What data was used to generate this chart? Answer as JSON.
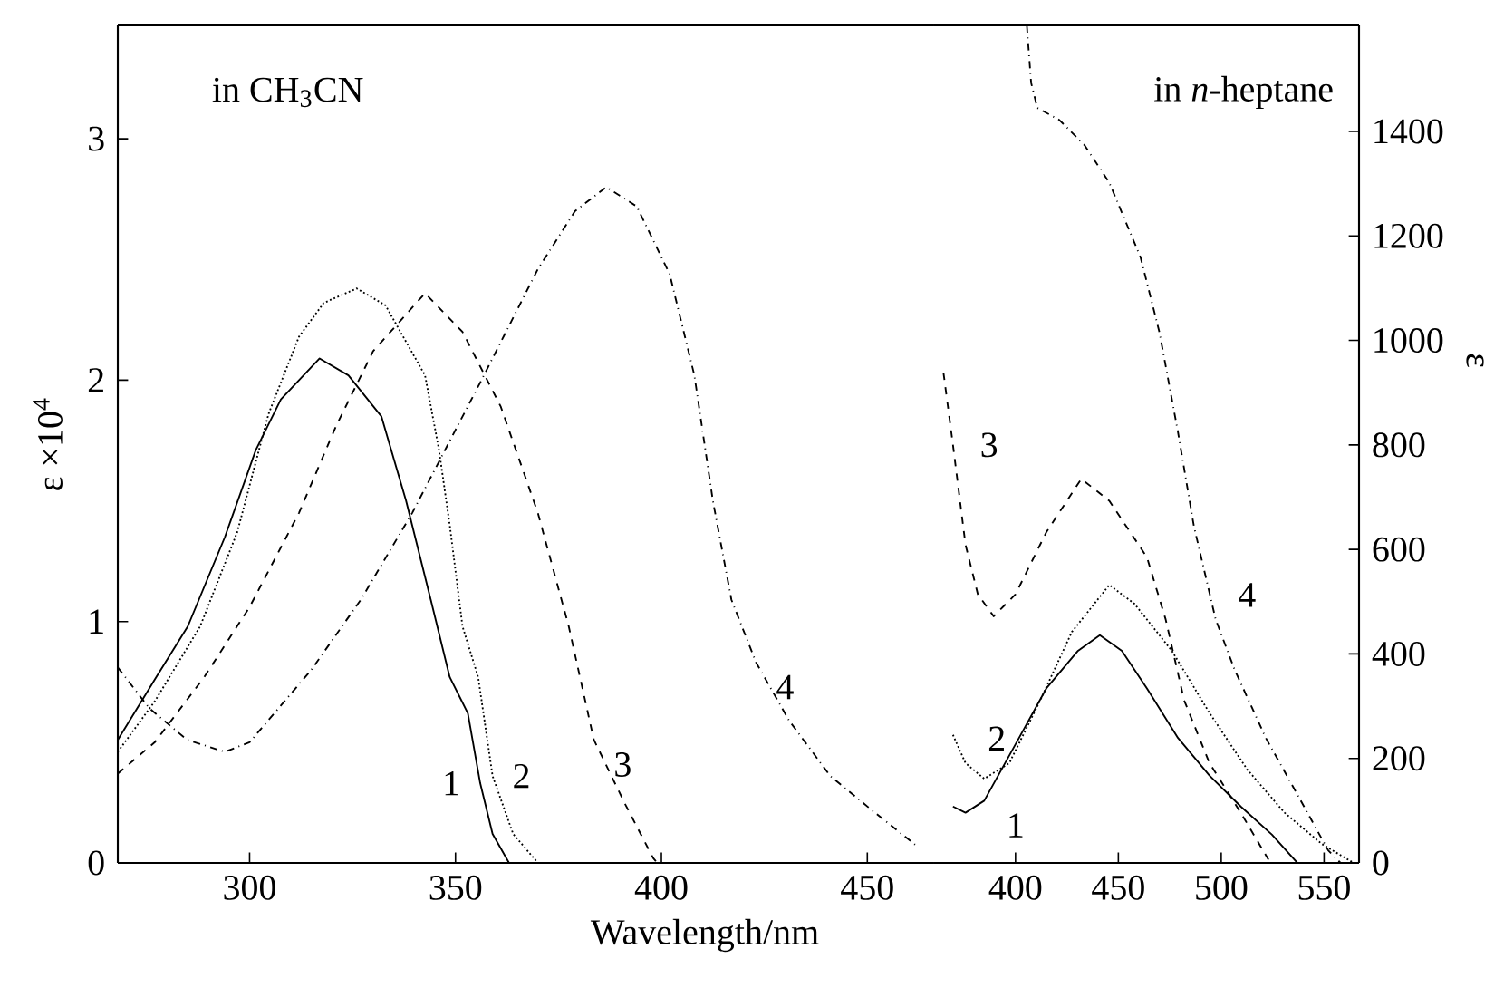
{
  "chart_data": [
    {
      "type": "line",
      "xlabel": "Wavelength/nm",
      "ylabel": "ε ×10$^{4}$",
      "annotations": [
        "in CH$_{3}$CN"
      ],
      "xlim": [
        268,
        466
      ],
      "ylim": [
        0,
        3.47
      ],
      "xticks": [
        300,
        350,
        400,
        450
      ],
      "yticks": [
        0,
        1,
        2,
        3
      ],
      "series": [
        {
          "name": "1",
          "color": "#000000",
          "line_style": "solid",
          "x": [
            268,
            277,
            285,
            294,
            301.5,
            307.6,
            317,
            324,
            332,
            338,
            344,
            348.6,
            353,
            356,
            359,
            363
          ],
          "values": [
            0.51,
            0.76,
            0.98,
            1.35,
            1.71,
            1.92,
            2.09,
            2.02,
            1.85,
            1.5,
            1.09,
            0.77,
            0.62,
            0.33,
            0.12,
            0
          ]
        },
        {
          "name": "2",
          "color": "#000000",
          "line_style": "dotted",
          "x": [
            268,
            277,
            288,
            297,
            304.6,
            312,
            318,
            326,
            333,
            342.6,
            346,
            348.6,
            351.7,
            355.5,
            359,
            364,
            370
          ],
          "values": [
            0.46,
            0.67,
            0.98,
            1.37,
            1.86,
            2.18,
            2.32,
            2.38,
            2.31,
            2.02,
            1.71,
            1.4,
            0.98,
            0.77,
            0.36,
            0.12,
            0
          ]
        },
        {
          "name": "3",
          "color": "#000000",
          "line_style": "dashed",
          "x": [
            268,
            277,
            289,
            300,
            312,
            321,
            330,
            342.6,
            351.7,
            361,
            370,
            377.5,
            383.6,
            391,
            398,
            399
          ],
          "values": [
            0.37,
            0.5,
            0.77,
            1.06,
            1.45,
            1.81,
            2.12,
            2.36,
            2.2,
            1.89,
            1.45,
            0.98,
            0.51,
            0.25,
            0.02,
            0
          ]
        },
        {
          "name": "4",
          "color": "#000000",
          "line_style": "dashdot",
          "x": [
            268,
            275.7,
            284.8,
            294,
            300,
            315,
            327,
            339.5,
            356,
            370,
            379,
            386.6,
            394,
            402,
            408,
            412.5,
            417,
            423,
            431,
            441,
            451,
            462
          ],
          "values": [
            0.81,
            0.64,
            0.51,
            0.46,
            0.5,
            0.8,
            1.09,
            1.45,
            1.99,
            2.46,
            2.7,
            2.8,
            2.72,
            2.44,
            2.02,
            1.5,
            1.09,
            0.83,
            0.59,
            0.36,
            0.22,
            0.07
          ]
        }
      ]
    },
    {
      "type": "line",
      "y2label": "ε",
      "annotations": [
        "in *n*-heptane"
      ],
      "xlim": [
        360,
        567
      ],
      "y2lim": [
        0,
        1603
      ],
      "xticks": [
        400,
        450,
        500,
        550
      ],
      "y2ticks": [
        0,
        200,
        400,
        600,
        800,
        1000,
        1200,
        1400
      ],
      "series": [
        {
          "name": "1",
          "color": "#000000",
          "line_style": "solid",
          "axis": "y2",
          "x": [
            369.6,
            375.7,
            384.8,
            400,
            415,
            430.4,
            441,
            451.7,
            463.9,
            479,
            494.3,
            509.5,
            524.7,
            537
          ],
          "values": [
            108,
            96,
            119,
            227,
            334,
            406,
            436,
            406,
            334,
            239,
            167,
            108,
            54,
            0
          ]
        },
        {
          "name": "2",
          "color": "#000000",
          "line_style": "dotted",
          "axis": "y2",
          "x": [
            369.6,
            375.7,
            384.8,
            397,
            412,
            427.4,
            445.6,
            457.8,
            476,
            494.3,
            512.6,
            530.8,
            549,
            564.3
          ],
          "values": [
            245,
            191,
            161,
            191,
            311,
            442,
            532,
            496,
            406,
            287,
            179,
            96,
            36,
            0
          ]
        },
        {
          "name": "3",
          "color": "#000000",
          "line_style": "dashed",
          "axis": "y2",
          "x": [
            365,
            369.6,
            375.7,
            381.7,
            389.4,
            400,
            415,
            432,
            445.6,
            463.9,
            473,
            482,
            494.3,
            509.5,
            523
          ],
          "values": [
            938,
            800,
            609,
            514,
            472,
            514,
            633,
            735,
            693,
            585,
            466,
            311,
            191,
            96,
            6
          ]
        },
        {
          "name": "4",
          "color": "#000000",
          "line_style": "dashdot",
          "axis": "y2",
          "x": [
            405.5,
            407.6,
            410.6,
            421.3,
            433.5,
            445.6,
            460.8,
            470,
            479,
            486.7,
            497.3,
            506.5,
            521.7,
            537,
            552,
            558
          ],
          "values": [
            1603,
            1493,
            1445,
            1422,
            1374,
            1302,
            1159,
            1015,
            824,
            645,
            466,
            370,
            239,
            131,
            24,
            0
          ]
        }
      ]
    }
  ]
}
